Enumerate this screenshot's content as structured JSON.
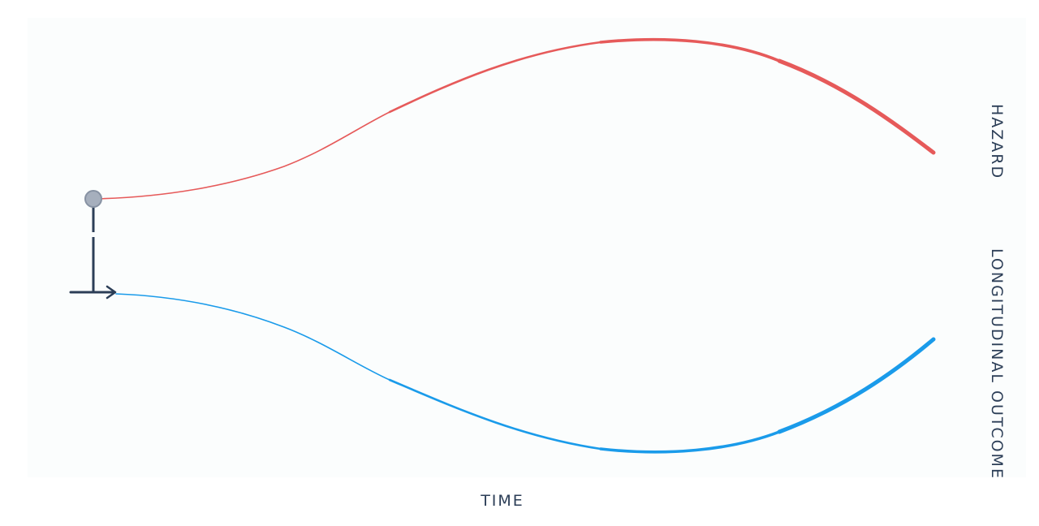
{
  "labels": {
    "x_axis": "TIME",
    "hazard": "HAZARD",
    "longitudinal": "LONGITUDINAL OUTCOME"
  },
  "colors": {
    "hazard_curve": "#e65a5a",
    "longitudinal_curve": "#1a9bea",
    "axis": "#2c3e57",
    "marker_fill": "#a6afbd",
    "marker_stroke": "#8792a3",
    "panel": "#fbfdfd"
  },
  "icons": {
    "origin_marker": "circle",
    "time_arrow": "arrow-right"
  }
}
